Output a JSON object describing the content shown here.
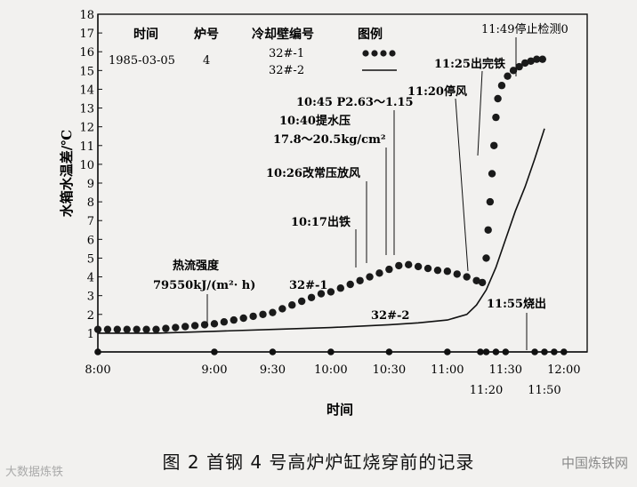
{
  "chart_data": {
    "type": "line",
    "xlabel": "时间",
    "ylabel": "水箱水温差/℃",
    "xlim": [
      "8:00",
      "12:12"
    ],
    "ylim": [
      0,
      18
    ],
    "y_ticks": [
      1,
      2,
      3,
      4,
      5,
      6,
      7,
      8,
      9,
      10,
      11,
      12,
      13,
      14,
      15,
      16,
      17,
      18
    ],
    "x_ticks": [
      {
        "t": "8:00",
        "label": "8:00"
      },
      {
        "t": "9:00",
        "label": "9:00"
      },
      {
        "t": "9:30",
        "label": "9:30"
      },
      {
        "t": "10:00",
        "label": "10:00"
      },
      {
        "t": "10:30",
        "label": "10:30"
      },
      {
        "t": "11:00",
        "label": "11:00"
      },
      {
        "t": "11:20",
        "label": "11:20"
      },
      {
        "t": "11:30",
        "label": "11:30"
      },
      {
        "t": "11:50",
        "label": "11:50"
      },
      {
        "t": "12:00",
        "label": "12:00"
      }
    ],
    "axis_markers": [
      "8:00",
      "9:00",
      "9:30",
      "10:00",
      "10:30",
      "11:00",
      "11:17",
      "11:20",
      "11:25",
      "11:30",
      "11:45",
      "11:50",
      "11:55",
      "12:00"
    ],
    "info_table": {
      "headers": [
        "时间",
        "炉号",
        "冷却壁编号",
        "图例"
      ],
      "date": "1985-03-05",
      "furnace": "4",
      "stave_1": "32#-1",
      "stave_2": "32#-2"
    },
    "series": [
      {
        "name": "32#-1",
        "style": "dots",
        "points": [
          [
            "8:00",
            1.2
          ],
          [
            "8:05",
            1.2
          ],
          [
            "8:10",
            1.2
          ],
          [
            "8:15",
            1.2
          ],
          [
            "8:20",
            1.2
          ],
          [
            "8:25",
            1.2
          ],
          [
            "8:30",
            1.2
          ],
          [
            "8:35",
            1.25
          ],
          [
            "8:40",
            1.3
          ],
          [
            "8:45",
            1.35
          ],
          [
            "8:50",
            1.4
          ],
          [
            "8:55",
            1.45
          ],
          [
            "9:00",
            1.5
          ],
          [
            "9:05",
            1.6
          ],
          [
            "9:10",
            1.7
          ],
          [
            "9:15",
            1.8
          ],
          [
            "9:20",
            1.9
          ],
          [
            "9:25",
            2.0
          ],
          [
            "9:30",
            2.1
          ],
          [
            "9:35",
            2.3
          ],
          [
            "9:40",
            2.5
          ],
          [
            "9:45",
            2.7
          ],
          [
            "9:50",
            2.9
          ],
          [
            "9:55",
            3.1
          ],
          [
            "10:00",
            3.2
          ],
          [
            "10:05",
            3.4
          ],
          [
            "10:10",
            3.6
          ],
          [
            "10:15",
            3.8
          ],
          [
            "10:20",
            4.0
          ],
          [
            "10:25",
            4.2
          ],
          [
            "10:30",
            4.4
          ],
          [
            "10:35",
            4.6
          ],
          [
            "10:40",
            4.65
          ],
          [
            "10:45",
            4.55
          ],
          [
            "10:50",
            4.45
          ],
          [
            "10:55",
            4.35
          ],
          [
            "11:00",
            4.3
          ],
          [
            "11:05",
            4.15
          ],
          [
            "11:10",
            4.0
          ],
          [
            "11:15",
            3.8
          ],
          [
            "11:18",
            3.7
          ],
          [
            "11:20",
            5.0
          ],
          [
            "11:21",
            6.5
          ],
          [
            "11:22",
            8.0
          ],
          [
            "11:23",
            9.5
          ],
          [
            "11:24",
            11.0
          ],
          [
            "11:25",
            12.5
          ],
          [
            "11:26",
            13.5
          ],
          [
            "11:28",
            14.2
          ],
          [
            "11:31",
            14.7
          ],
          [
            "11:34",
            15.0
          ],
          [
            "11:37",
            15.2
          ],
          [
            "11:40",
            15.4
          ],
          [
            "11:43",
            15.5
          ],
          [
            "11:46",
            15.6
          ],
          [
            "11:49",
            15.6
          ]
        ]
      },
      {
        "name": "32#-2",
        "style": "line",
        "points": [
          [
            "8:00",
            1.0
          ],
          [
            "8:30",
            1.0
          ],
          [
            "9:00",
            1.1
          ],
          [
            "9:30",
            1.2
          ],
          [
            "10:00",
            1.3
          ],
          [
            "10:30",
            1.45
          ],
          [
            "10:45",
            1.55
          ],
          [
            "11:00",
            1.7
          ],
          [
            "11:10",
            2.0
          ],
          [
            "11:15",
            2.5
          ],
          [
            "11:20",
            3.3
          ],
          [
            "11:25",
            4.5
          ],
          [
            "11:30",
            6.0
          ],
          [
            "11:35",
            7.5
          ],
          [
            "11:40",
            8.8
          ],
          [
            "11:45",
            10.3
          ],
          [
            "11:50",
            11.9
          ]
        ]
      }
    ],
    "annotations": [
      {
        "text": "11:49停止检测0"
      },
      {
        "text": "11:25出完铁"
      },
      {
        "text": "11:20停风"
      },
      {
        "text": "10:45 P2.63～1.15"
      },
      {
        "text": "10:40提水压"
      },
      {
        "text": "17.8～20.5kg/cm²"
      },
      {
        "text": "10:26改常压放风"
      },
      {
        "text": "10:17出铁"
      },
      {
        "text": "热流强度"
      },
      {
        "text": "79550kJ/(m²· h)"
      },
      {
        "text": "32#-1"
      },
      {
        "text": "32#-2"
      },
      {
        "text": "11:55烧出"
      }
    ]
  },
  "caption": "图 2    首钢 4 号高炉炉缸烧穿前的记录",
  "watermark_left": "大数据炼铁",
  "watermark_right": "中国炼铁网"
}
